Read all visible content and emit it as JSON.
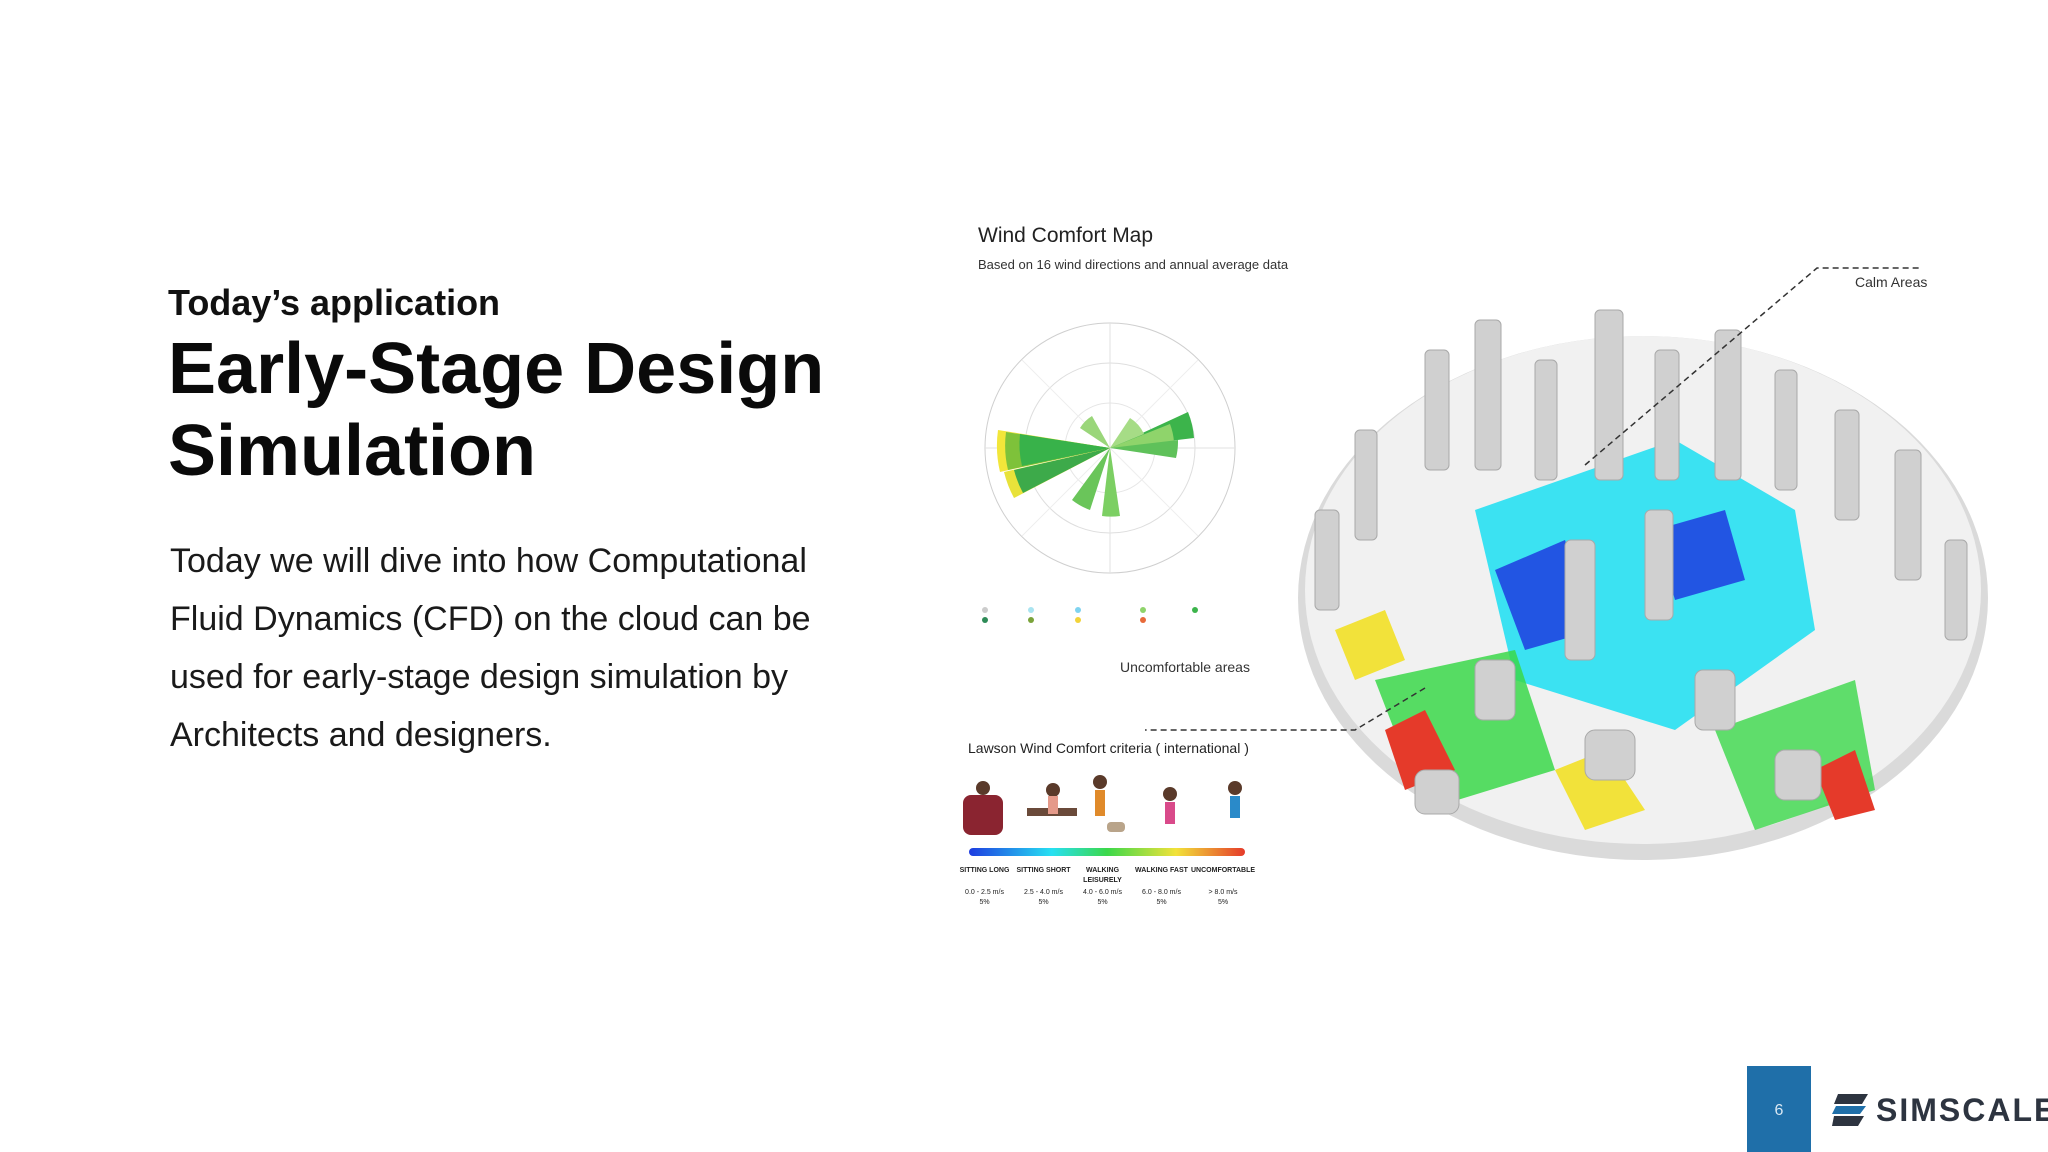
{
  "slide": {
    "eyebrow": "Today’s application",
    "title_line1": "Early-Stage Design",
    "title_line2": "Simulation",
    "body": "Today we will dive into how Computational Fluid Dynamics (CFD) on the cloud can be used for early-stage design simulation by Architects and designers.",
    "page_number": "6"
  },
  "figure": {
    "title": "Wind Comfort Map",
    "subtitle": "Based on 16 wind directions and annual average data",
    "calm_label": "Calm Areas",
    "uncomfortable_label": "Uncomfortable areas",
    "lawson_label": "Lawson Wind Comfort criteria ( international )",
    "lawson_categories": [
      {
        "name": "SITTING LONG",
        "range": "0.0 - 2.5 m/s",
        "pct": "5%"
      },
      {
        "name": "SITTING SHORT",
        "range": "2.5 - 4.0 m/s",
        "pct": "5%"
      },
      {
        "name": "WALKING LEISURELY",
        "range": "4.0 - 6.0 m/s",
        "pct": "5%"
      },
      {
        "name": "WALKING FAST",
        "range": "6.0 - 8.0 m/s",
        "pct": "5%"
      },
      {
        "name": "UNCOMFORTABLE",
        "range": "> 8.0 m/s",
        "pct": "5%"
      }
    ]
  },
  "brand": {
    "name": "SIMSCALE",
    "accent": "#1f6fa9"
  }
}
